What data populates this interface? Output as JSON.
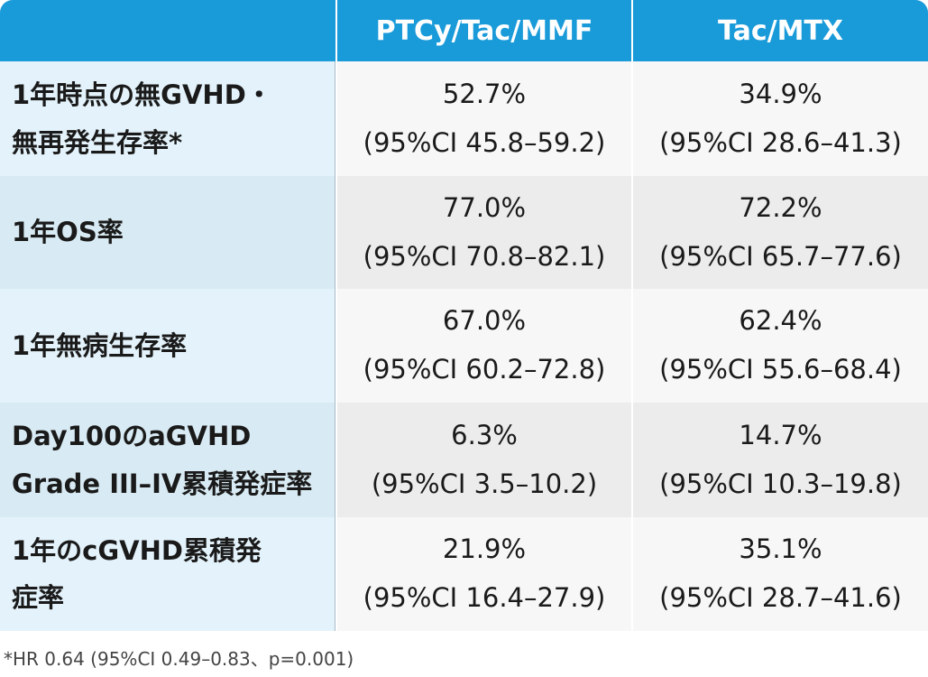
{
  "header": {
    "col1": "PTCy/Tac/MMF",
    "col2": "Tac/MTX"
  },
  "rows": [
    {
      "label_lines": [
        "1年時点の無GVHD・",
        "無再発生存率*"
      ],
      "ptcy": {
        "value": "52.7%",
        "ci": "(95%CI 45.8–59.2)"
      },
      "tac": {
        "value": "34.9%",
        "ci": "(95%CI 28.6–41.3)"
      }
    },
    {
      "label_lines": [
        "1年OS率"
      ],
      "ptcy": {
        "value": "77.0%",
        "ci": "(95%CI 70.8–82.1)"
      },
      "tac": {
        "value": "72.2%",
        "ci": "(95%CI 65.7–77.6)"
      }
    },
    {
      "label_lines": [
        "1年無病生存率"
      ],
      "ptcy": {
        "value": "67.0%",
        "ci": "(95%CI 60.2–72.8)"
      },
      "tac": {
        "value": "62.4%",
        "ci": "(95%CI 55.6–68.4)"
      }
    },
    {
      "label_lines": [
        "Day100のaGVHD",
        "Grade III–IV累積発症率"
      ],
      "ptcy": {
        "value": "6.3%",
        "ci": "(95%CI 3.5–10.2)"
      },
      "tac": {
        "value": "14.7%",
        "ci": "(95%CI 10.3–19.8)"
      }
    },
    {
      "label_lines": [
        "1年のcGVHD累積発",
        "症率"
      ],
      "ptcy": {
        "value": "21.9%",
        "ci": "(95%CI 16.4–27.9)"
      },
      "tac": {
        "value": "35.1%",
        "ci": "(95%CI 28.7–41.6)"
      }
    }
  ],
  "footnote": "*HR 0.64 (95%CI 0.49–0.83、p=0.001)",
  "colors": {
    "header_bg": "#199ad9",
    "label_bg_light": "#e4f3fb",
    "label_bg_dark": "#d8eaf3",
    "value_bg_light": "#f7f7f7",
    "value_bg_dark": "#ececec"
  }
}
